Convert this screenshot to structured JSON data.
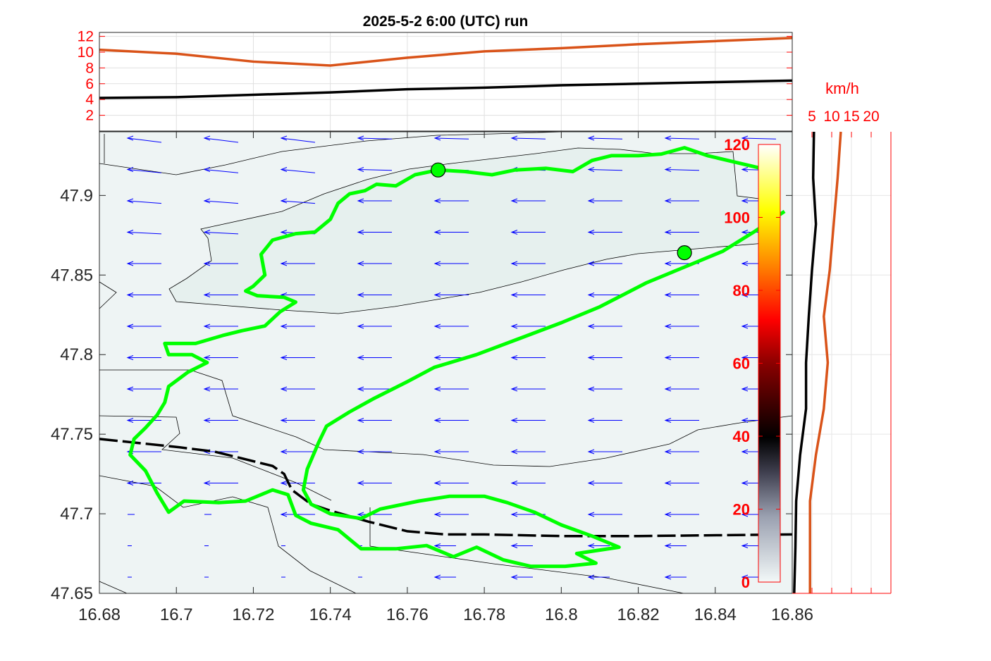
{
  "title": "2025-5-2  6:00 (UTC) run",
  "colors": {
    "track": "#00ff00",
    "border": "#000000",
    "arrow": "#0000ff",
    "series_orange": "#d95319",
    "series_black": "#000000",
    "tick_red": "#ff0000"
  },
  "chart_data": [
    {
      "type": "line",
      "panel": "top-timeseries",
      "ylim": [
        0,
        12.5
      ],
      "yticks": [
        "2",
        "4",
        "6",
        "8",
        "10",
        "12"
      ],
      "x": [
        0,
        1,
        2,
        3,
        4,
        5,
        6,
        7,
        8,
        9
      ],
      "series": [
        {
          "color": "#d95319",
          "values": [
            10.3,
            9.8,
            8.8,
            8.3,
            9.3,
            10.1,
            10.5,
            11.0,
            11.4,
            11.8
          ]
        },
        {
          "color": "#000000",
          "values": [
            4.2,
            4.3,
            4.6,
            4.9,
            5.3,
            5.5,
            5.8,
            6.0,
            6.2,
            6.4
          ]
        }
      ],
      "grid": true
    },
    {
      "type": "map",
      "panel": "main-map",
      "xlim": [
        16.68,
        16.86
      ],
      "ylim": [
        47.65,
        47.94
      ],
      "xticks": [
        "16.68",
        "16.7",
        "16.72",
        "16.74",
        "16.76",
        "16.78",
        "16.8",
        "16.82",
        "16.84",
        "16.86"
      ],
      "yticks": [
        "47.65",
        "47.7",
        "47.75",
        "47.8",
        "47.85",
        "47.9"
      ],
      "track": [
        [
          16.852,
          47.917
        ],
        [
          16.845,
          47.921
        ],
        [
          16.838,
          47.925
        ],
        [
          16.832,
          47.93
        ],
        [
          16.826,
          47.926
        ],
        [
          16.82,
          47.925
        ],
        [
          16.813,
          47.925
        ],
        [
          16.808,
          47.922
        ],
        [
          16.803,
          47.915
        ],
        [
          16.796,
          47.917
        ],
        [
          16.788,
          47.916
        ],
        [
          16.782,
          47.913
        ],
        [
          16.775,
          47.915
        ],
        [
          16.768,
          47.916
        ],
        [
          16.762,
          47.913
        ],
        [
          16.757,
          47.906
        ],
        [
          16.752,
          47.907
        ],
        [
          16.749,
          47.903
        ],
        [
          16.745,
          47.901
        ],
        [
          16.742,
          47.895
        ],
        [
          16.74,
          47.885
        ],
        [
          16.736,
          47.877
        ],
        [
          16.731,
          47.876
        ],
        [
          16.725,
          47.872
        ],
        [
          16.722,
          47.863
        ],
        [
          16.723,
          47.85
        ],
        [
          16.72,
          47.843
        ],
        [
          16.718,
          47.84
        ],
        [
          16.721,
          47.837
        ],
        [
          16.728,
          47.836
        ],
        [
          16.731,
          47.833
        ],
        [
          16.727,
          47.827
        ],
        [
          16.723,
          47.818
        ],
        [
          16.717,
          47.815
        ],
        [
          16.712,
          47.812
        ],
        [
          16.705,
          47.807
        ],
        [
          16.697,
          47.807
        ],
        [
          16.698,
          47.8
        ],
        [
          16.704,
          47.8
        ],
        [
          16.708,
          47.795
        ],
        [
          16.703,
          47.789
        ],
        [
          16.698,
          47.78
        ],
        [
          16.697,
          47.77
        ],
        [
          16.695,
          47.762
        ],
        [
          16.692,
          47.754
        ],
        [
          16.689,
          47.747
        ],
        [
          16.688,
          47.737
        ],
        [
          16.692,
          47.727
        ],
        [
          16.695,
          47.713
        ],
        [
          16.698,
          47.701
        ],
        [
          16.702,
          47.708
        ],
        [
          16.711,
          47.707
        ],
        [
          16.718,
          47.708
        ],
        [
          16.725,
          47.715
        ],
        [
          16.729,
          47.712
        ],
        [
          16.731,
          47.699
        ],
        [
          16.735,
          47.694
        ],
        [
          16.742,
          47.69
        ],
        [
          16.748,
          47.678
        ],
        [
          16.757,
          47.678
        ],
        [
          16.765,
          47.68
        ],
        [
          16.772,
          47.673
        ],
        [
          16.778,
          47.679
        ],
        [
          16.785,
          47.671
        ],
        [
          16.792,
          47.667
        ],
        [
          16.801,
          47.667
        ],
        [
          16.809,
          47.669
        ],
        [
          16.804,
          47.675
        ],
        [
          16.815,
          47.679
        ],
        [
          16.808,
          47.686
        ],
        [
          16.8,
          47.693
        ],
        [
          16.793,
          47.701
        ],
        [
          16.786,
          47.707
        ],
        [
          16.78,
          47.711
        ],
        [
          16.771,
          47.711
        ],
        [
          16.763,
          47.708
        ],
        [
          16.753,
          47.703
        ],
        [
          16.748,
          47.697
        ],
        [
          16.74,
          47.7
        ],
        [
          16.735,
          47.706
        ],
        [
          16.733,
          47.715
        ],
        [
          16.734,
          47.728
        ],
        [
          16.737,
          47.745
        ],
        [
          16.739,
          47.755
        ],
        [
          16.745,
          47.764
        ],
        [
          16.751,
          47.772
        ],
        [
          16.76,
          47.783
        ],
        [
          16.767,
          47.792
        ],
        [
          16.778,
          47.8
        ],
        [
          16.789,
          47.81
        ],
        [
          16.8,
          47.82
        ],
        [
          16.81,
          47.83
        ],
        [
          16.822,
          47.845
        ],
        [
          16.832,
          47.855
        ],
        [
          16.842,
          47.865
        ],
        [
          16.85,
          47.877
        ],
        [
          16.858,
          47.89
        ]
      ],
      "markers": [
        [
          16.768,
          47.916
        ],
        [
          16.832,
          47.864
        ]
      ],
      "border": [
        [
          16.68,
          47.747
        ],
        [
          16.7,
          47.742
        ],
        [
          16.71,
          47.739
        ],
        [
          16.72,
          47.733
        ],
        [
          16.725,
          47.73
        ],
        [
          16.728,
          47.725
        ],
        [
          16.73,
          47.715
        ],
        [
          16.735,
          47.706
        ],
        [
          16.74,
          47.702
        ],
        [
          16.75,
          47.695
        ],
        [
          16.76,
          47.689
        ],
        [
          16.77,
          47.687
        ],
        [
          16.78,
          47.687
        ],
        [
          16.8,
          47.686
        ],
        [
          16.82,
          47.686
        ],
        [
          16.86,
          47.687
        ]
      ],
      "wind": {
        "direction": "from east",
        "color": "#0000ff"
      }
    },
    {
      "type": "colorbar",
      "panel": "colorbar",
      "ylim": [
        0,
        120
      ],
      "ticks": [
        "0",
        "20",
        "40",
        "60",
        "80",
        "100",
        "120"
      ]
    },
    {
      "type": "line",
      "panel": "side-profile",
      "unit": "km/h",
      "xticks": [
        "5",
        "10",
        "15",
        "20"
      ],
      "xlim": [
        0,
        25
      ],
      "series": [
        {
          "color": "#000000",
          "values": [
            0.5,
            0.8,
            1.0,
            2.0,
            3.5,
            3.5,
            4.2,
            5.0,
            6.0,
            5.3,
            5.5
          ]
        },
        {
          "color": "#d95319",
          "values": [
            4.5,
            4.5,
            4.5,
            6.0,
            8.0,
            9.0,
            8.0,
            9.5,
            10.5,
            11.5,
            12.3
          ]
        }
      ],
      "grid": true
    }
  ]
}
